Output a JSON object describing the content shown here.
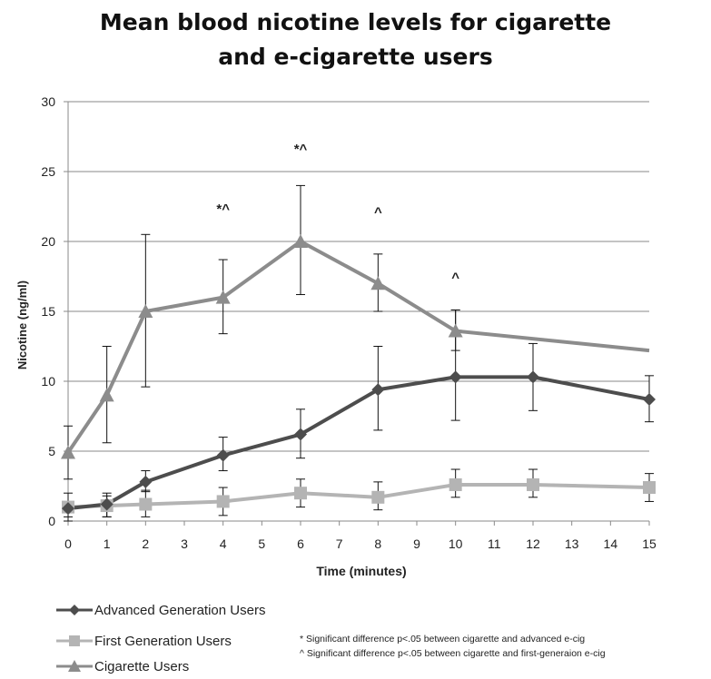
{
  "chart_data": {
    "type": "line",
    "title": [
      "Mean blood nicotine levels for cigarette",
      "and e-cigarette users"
    ],
    "xlabel": "Time (minutes)",
    "ylabel": "Nicotine (ng/ml)",
    "xlim": [
      0,
      15
    ],
    "ylim": [
      0,
      30
    ],
    "x_ticks": [
      0,
      1,
      2,
      3,
      4,
      5,
      6,
      7,
      8,
      9,
      10,
      11,
      12,
      13,
      14,
      15
    ],
    "y_ticks": [
      0,
      5,
      10,
      15,
      20,
      25,
      30
    ],
    "grid": "horizontal",
    "legend_position": "bottom-left",
    "series": [
      {
        "name": "Advanced Generation Users",
        "color": "#4d4d4d",
        "marker": "diamond",
        "points": [
          {
            "x": 0,
            "y": 0.9,
            "err": [
              0.3,
              1.0
            ]
          },
          {
            "x": 1,
            "y": 1.2,
            "err": [
              0.3,
              2.0
            ]
          },
          {
            "x": 2,
            "y": 2.8,
            "err": [
              2.1,
              3.6
            ]
          },
          {
            "x": 4,
            "y": 4.7,
            "err": [
              3.6,
              6.0
            ]
          },
          {
            "x": 6,
            "y": 6.2,
            "err": [
              4.5,
              8.0
            ]
          },
          {
            "x": 8,
            "y": 9.4,
            "err": [
              6.5,
              12.5
            ]
          },
          {
            "x": 10,
            "y": 10.3,
            "err": [
              7.2,
              15.1
            ]
          },
          {
            "x": 12,
            "y": 10.3,
            "err": [
              7.9,
              12.7
            ]
          },
          {
            "x": 15,
            "y": 8.7,
            "err": [
              7.1,
              10.4
            ]
          }
        ]
      },
      {
        "name": "First Generation Users",
        "color": "#b4b4b4",
        "marker": "square",
        "points": [
          {
            "x": 0,
            "y": 1.0,
            "err": [
              0.0,
              2.0
            ]
          },
          {
            "x": 1,
            "y": 1.1,
            "err": [
              0.3,
              1.8
            ]
          },
          {
            "x": 2,
            "y": 1.2,
            "err": [
              0.3,
              2.2
            ]
          },
          {
            "x": 4,
            "y": 1.4,
            "err": [
              0.4,
              2.4
            ]
          },
          {
            "x": 6,
            "y": 2.0,
            "err": [
              1.0,
              3.0
            ]
          },
          {
            "x": 8,
            "y": 1.7,
            "err": [
              0.8,
              2.8
            ]
          },
          {
            "x": 10,
            "y": 2.6,
            "err": [
              1.7,
              3.7
            ]
          },
          {
            "x": 12,
            "y": 2.6,
            "err": [
              1.7,
              3.7
            ]
          },
          {
            "x": 15,
            "y": 2.4,
            "err": [
              1.4,
              3.4
            ]
          }
        ]
      },
      {
        "name": "Cigarette Users",
        "color": "#8c8c8c",
        "marker": "triangle",
        "points": [
          {
            "x": 0,
            "y": 4.9,
            "err": [
              3.0,
              6.8
            ]
          },
          {
            "x": 1,
            "y": 9.0,
            "err": [
              5.6,
              12.5
            ]
          },
          {
            "x": 2,
            "y": 15.0,
            "err": [
              9.6,
              20.5
            ]
          },
          {
            "x": 4,
            "y": 16.0,
            "err": [
              13.4,
              18.7
            ]
          },
          {
            "x": 6,
            "y": 20.0,
            "err": [
              16.2,
              24.0
            ]
          },
          {
            "x": 8,
            "y": 17.0,
            "err": [
              15.0,
              19.1
            ]
          },
          {
            "x": 10,
            "y": 13.6,
            "err": [
              12.2,
              15.1
            ]
          },
          {
            "x": 15,
            "y": 12.2
          }
        ]
      }
    ],
    "annotations": [
      {
        "x": 4,
        "y": 22.0,
        "text": "*^"
      },
      {
        "x": 6,
        "y": 26.3,
        "text": "*^"
      },
      {
        "x": 8,
        "y": 21.8,
        "text": "^"
      },
      {
        "x": 10,
        "y": 17.1,
        "text": "^"
      }
    ]
  },
  "footnotes": [
    "* Significant difference p<.05 between cigarette and advanced e-cig",
    "^ Significant difference p<.05 between cigarette and first-generaion e-cig"
  ]
}
